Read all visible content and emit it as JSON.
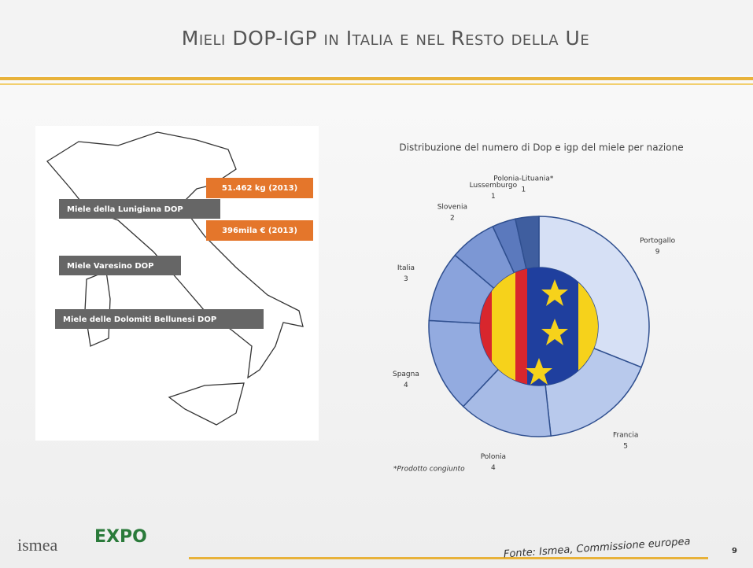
{
  "title": "Mieli DOP-IGP in Italia e nel Resto della Ue",
  "map_labels": [
    "Miele della Lunigiana DOP",
    "Miele Varesino DOP",
    "Miele delle Dolomiti Bellunesi DOP"
  ],
  "map_stats": [
    "51.462 kg (2013)",
    "396mila € (2013)"
  ],
  "chart_data": {
    "type": "donut",
    "title": "Distribuzione del numero di Dop e igp del miele per nazione",
    "categories": [
      "Portogallo",
      "Francia",
      "Polonia",
      "Spagna",
      "Italia",
      "Slovenia",
      "Lussemburgo",
      "Polonia-Lituania*"
    ],
    "values": [
      9,
      5,
      4,
      4,
      3,
      2,
      1,
      1
    ],
    "colors": [
      "#d6e0f5",
      "#b8c9ec",
      "#a7bbe6",
      "#93abe0",
      "#8aa3dc",
      "#7c97d4",
      "#5b79bd",
      "#3f5e9f"
    ],
    "note": "*Prodotto congiunto"
  },
  "footer": {
    "logo_ismea": "ismea",
    "logo_expo": "EXPO",
    "source": "Fonte: Ismea, Commissione europea",
    "page": "9"
  }
}
